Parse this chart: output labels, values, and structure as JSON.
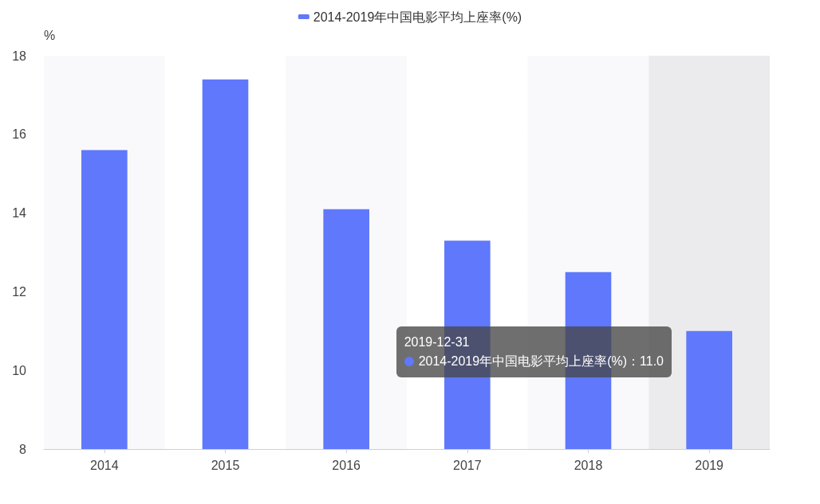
{
  "chart_data": {
    "type": "bar",
    "categories": [
      "2014",
      "2015",
      "2016",
      "2017",
      "2018",
      "2019"
    ],
    "series": [
      {
        "name": "2014-2019年中国电影平均上座率(%)",
        "color": "#5f78fc",
        "values": [
          15.6,
          17.4,
          14.1,
          13.3,
          12.5,
          11.0
        ]
      }
    ],
    "ylabel": "%",
    "ylim": [
      8,
      18
    ],
    "yticks": [
      8,
      10,
      12,
      14,
      16,
      18
    ],
    "grid": "y",
    "legend": "top",
    "bands": [
      {
        "axis": "x",
        "from": "2019",
        "to": "2019",
        "color": "#ebebed"
      }
    ],
    "annotations": [
      "2019-12-31\n2014-2019年中国电影平均上座率(%)：11.0"
    ]
  }
}
